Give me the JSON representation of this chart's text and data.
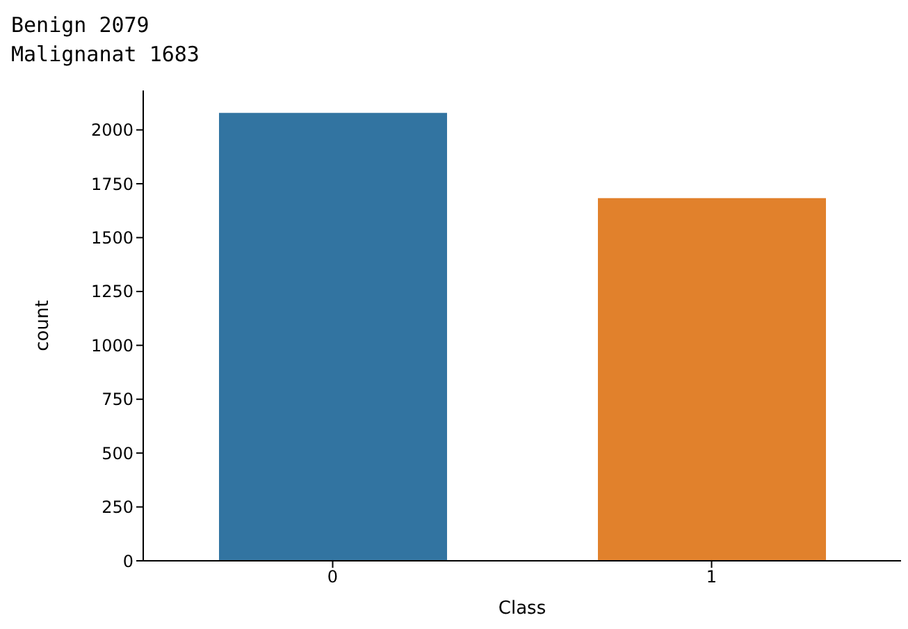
{
  "chart_data": {
    "type": "bar",
    "annotations": [
      "Benign 2079",
      "Malignanat 1683"
    ],
    "xlabel": "Class",
    "ylabel": "count",
    "categories": [
      "0",
      "1"
    ],
    "values": [
      2079,
      1683
    ],
    "colors": [
      "#3274a1",
      "#e1812c"
    ],
    "ylim": [
      0,
      2183
    ],
    "yticks": [
      0,
      250,
      500,
      750,
      1000,
      1250,
      1500,
      1750,
      2000
    ],
    "grid": false,
    "legend": false
  }
}
